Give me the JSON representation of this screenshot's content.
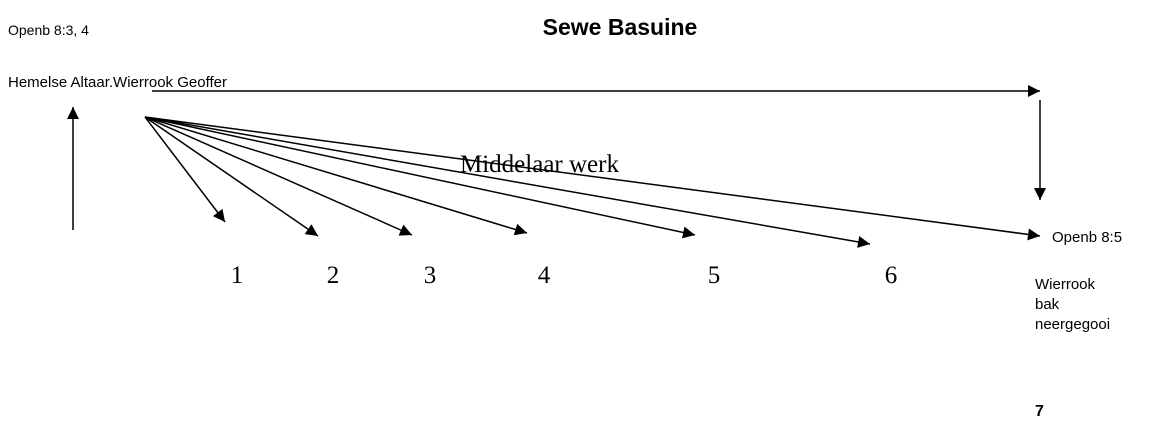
{
  "header": {
    "reference": "Openb 8:3, 4",
    "title": "Sewe Basuine"
  },
  "source": "Hemelse Altaar.Wierrook Geoffer",
  "middle_label": "Middelaar werk",
  "trumpets": [
    "1",
    "2",
    "3",
    "4",
    "5",
    "6"
  ],
  "target": {
    "label": "Openb 8:5",
    "note": [
      "Wierrook",
      "bak",
      "neergegooi"
    ]
  },
  "page_number": "7"
}
